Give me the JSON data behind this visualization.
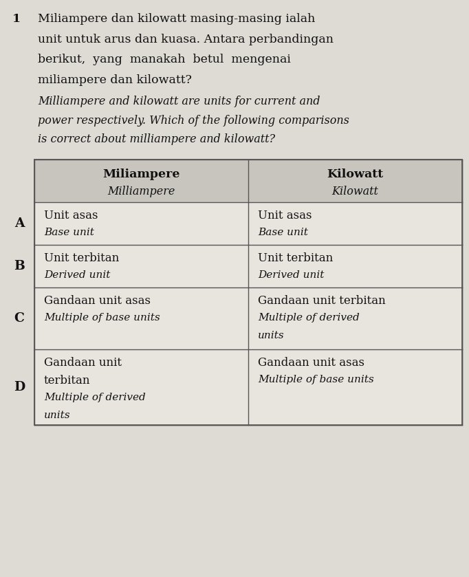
{
  "question_number": "1",
  "malay_lines": [
    "Miliampere dan kilowatt masing-masing ialah",
    "unit untuk arus dan kuasa. Antara perbandingan",
    "berikut,  yang  manakah  betul  mengenai",
    "miliampere dan kilowatt?"
  ],
  "english_lines": [
    "Milliampere and kilowatt are units for current and",
    "power respectively. Which of the following comparisons",
    "is correct about milliampere and kilowatt?"
  ],
  "col1_header_bold": "Miliampere",
  "col1_header_italic": "Milliampere",
  "col2_header_bold": "Kilowatt",
  "col2_header_italic": "Kilowatt",
  "rows": [
    {
      "label": "A",
      "col1_lines": [
        "Unit asas",
        "Base unit"
      ],
      "col1_italic": [
        false,
        true
      ],
      "col2_lines": [
        "Unit asas",
        "Base unit"
      ],
      "col2_italic": [
        false,
        true
      ]
    },
    {
      "label": "B",
      "col1_lines": [
        "Unit terbitan",
        "Derived unit"
      ],
      "col1_italic": [
        false,
        true
      ],
      "col2_lines": [
        "Unit terbitan",
        "Derived unit"
      ],
      "col2_italic": [
        false,
        true
      ]
    },
    {
      "label": "C",
      "col1_lines": [
        "Gandaan unit asas",
        "Multiple of base units"
      ],
      "col1_italic": [
        false,
        true
      ],
      "col2_lines": [
        "Gandaan unit terbitan",
        "Multiple of derived",
        "units"
      ],
      "col2_italic": [
        false,
        true,
        true
      ]
    },
    {
      "label": "D",
      "col1_lines": [
        "Gandaan unit",
        "terbitan",
        "Multiple of derived",
        "units"
      ],
      "col1_italic": [
        false,
        false,
        true,
        true
      ],
      "col2_lines": [
        "Gandaan unit asas",
        "Multiple of base units"
      ],
      "col2_italic": [
        false,
        true
      ]
    }
  ],
  "bg_color": "#dedbd5",
  "table_bg_light": "#e8e5df",
  "table_bg_dark": "#d5d2cc",
  "header_bg": "#c8c5bf",
  "line_color": "#555555",
  "text_color": "#111111",
  "figw": 6.82,
  "figh": 8.39,
  "dpi": 100
}
